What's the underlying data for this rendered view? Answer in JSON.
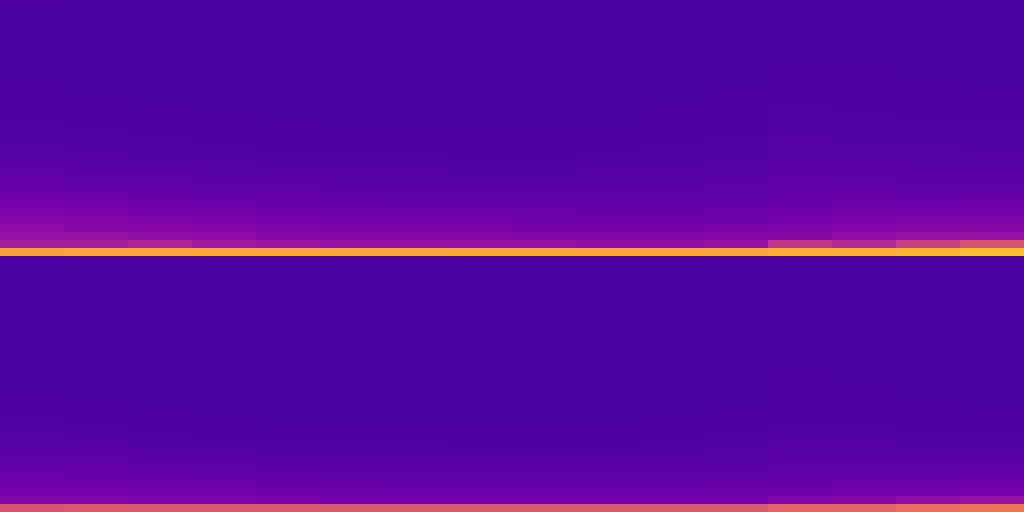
{
  "chart_data": [
    {
      "type": "heatmap",
      "zlim": [
        0,
        100
      ],
      "values": [
        [
          13,
          12,
          12,
          12,
          12,
          12,
          12,
          12,
          12,
          12,
          12,
          12,
          12,
          12,
          12,
          12
        ],
        [
          12,
          12,
          12,
          12,
          12,
          12,
          12,
          12,
          12,
          12,
          12,
          12,
          12,
          12,
          12,
          12
        ],
        [
          12,
          12,
          12,
          12,
          12,
          12,
          12,
          12,
          12,
          12,
          12,
          12,
          12,
          12,
          12,
          12
        ],
        [
          12,
          12,
          12,
          12,
          12,
          12,
          12,
          12,
          12,
          12,
          12,
          12,
          12,
          12,
          12,
          12
        ],
        [
          12,
          12,
          12,
          12,
          12,
          12,
          12,
          12,
          12,
          12,
          12,
          12,
          12,
          12,
          12,
          12
        ],
        [
          12,
          12,
          12,
          12,
          12,
          12,
          12,
          12,
          12,
          12,
          12,
          12,
          12,
          12,
          12,
          12
        ],
        [
          12,
          12,
          12,
          12,
          12,
          12,
          12,
          12,
          12,
          12,
          12,
          12,
          12,
          12,
          12,
          12
        ],
        [
          12,
          12,
          12,
          12,
          12,
          12,
          12,
          12,
          12,
          12,
          12,
          12,
          12,
          12,
          12,
          12
        ],
        [
          12,
          12,
          12,
          12,
          12,
          12,
          12,
          12,
          12,
          12,
          12,
          12,
          13,
          13,
          12,
          12
        ],
        [
          12,
          12,
          12,
          12,
          12,
          12,
          12,
          12,
          12,
          12,
          12,
          12,
          13,
          13,
          12,
          12
        ],
        [
          13,
          12,
          12,
          12,
          12,
          12,
          12,
          12,
          12,
          12,
          12,
          12,
          13,
          13,
          13,
          12
        ],
        [
          13,
          12,
          12,
          12,
          12,
          12,
          12,
          12,
          12,
          12,
          12,
          13,
          13,
          13,
          13,
          13
        ],
        [
          13,
          13,
          12,
          12,
          12,
          12,
          12,
          12,
          12,
          12,
          12,
          13,
          13,
          13,
          13,
          13
        ],
        [
          13,
          13,
          13,
          12,
          12,
          12,
          12,
          12,
          12,
          12,
          13,
          13,
          14,
          13,
          13,
          13
        ],
        [
          13,
          13,
          13,
          13,
          12,
          12,
          12,
          12,
          12,
          12,
          13,
          13,
          14,
          14,
          13,
          13
        ],
        [
          14,
          13,
          13,
          13,
          13,
          12,
          12,
          12,
          12,
          12,
          13,
          13,
          14,
          14,
          14,
          14
        ],
        [
          14,
          14,
          13,
          13,
          13,
          13,
          13,
          13,
          13,
          13,
          13,
          13,
          14,
          14,
          14,
          14
        ],
        [
          14,
          14,
          14,
          13,
          13,
          13,
          13,
          13,
          13,
          13,
          13,
          14,
          15,
          14,
          14,
          14
        ],
        [
          15,
          14,
          14,
          14,
          13,
          13,
          13,
          13,
          13,
          13,
          14,
          14,
          15,
          15,
          15,
          14
        ],
        [
          15,
          15,
          14,
          14,
          14,
          14,
          14,
          13,
          13,
          14,
          14,
          14,
          15,
          15,
          15,
          15
        ],
        [
          16,
          15,
          15,
          15,
          14,
          14,
          14,
          14,
          14,
          14,
          14,
          15,
          16,
          16,
          15,
          15
        ],
        [
          17,
          16,
          16,
          15,
          15,
          15,
          15,
          14,
          14,
          15,
          15,
          15,
          16,
          16,
          16,
          16
        ],
        [
          18,
          17,
          17,
          16,
          16,
          15,
          15,
          15,
          15,
          15,
          15,
          16,
          17,
          17,
          16,
          16
        ],
        [
          19,
          18,
          18,
          17,
          17,
          16,
          16,
          16,
          16,
          16,
          16,
          17,
          17,
          18,
          17,
          17
        ],
        [
          21,
          20,
          19,
          18,
          18,
          17,
          17,
          17,
          17,
          17,
          17,
          17,
          18,
          19,
          18,
          19
        ],
        [
          23,
          22,
          21,
          20,
          19,
          19,
          18,
          18,
          18,
          18,
          18,
          18,
          19,
          20,
          20,
          21
        ],
        [
          25,
          24,
          23,
          22,
          21,
          20,
          20,
          20,
          20,
          19,
          19,
          20,
          21,
          22,
          22,
          23
        ],
        [
          27,
          26,
          25,
          24,
          23,
          22,
          22,
          22,
          21,
          21,
          21,
          21,
          23,
          24,
          25,
          25
        ],
        [
          29,
          28,
          27,
          26,
          25,
          24,
          24,
          24,
          23,
          23,
          23,
          24,
          25,
          26,
          27,
          28
        ],
        [
          32,
          31,
          30,
          29,
          28,
          27,
          27,
          27,
          26,
          26,
          26,
          27,
          28,
          30,
          31,
          32
        ],
        [
          36,
          36,
          38,
          34,
          33,
          32,
          32,
          31,
          31,
          30,
          30,
          32,
          45,
          40,
          48,
          55
        ],
        [
          78,
          80,
          80,
          80,
          80,
          80,
          80,
          80,
          80,
          80,
          80,
          80,
          82,
          82,
          84,
          86
        ]
      ]
    },
    {
      "type": "heatmap",
      "zlim": [
        0,
        100
      ],
      "values": [
        [
          12,
          12,
          12,
          12,
          12,
          12,
          12,
          12,
          12,
          12,
          12,
          12,
          12,
          12,
          12,
          12
        ],
        [
          12,
          12,
          12,
          12,
          12,
          12,
          12,
          12,
          12,
          12,
          12,
          12,
          12,
          12,
          12,
          12
        ],
        [
          12,
          12,
          12,
          12,
          12,
          12,
          12,
          12,
          12,
          12,
          12,
          12,
          12,
          12,
          12,
          12
        ],
        [
          12,
          12,
          12,
          12,
          12,
          12,
          12,
          12,
          12,
          12,
          12,
          12,
          12,
          12,
          12,
          12
        ],
        [
          12,
          12,
          12,
          12,
          12,
          12,
          12,
          12,
          12,
          12,
          12,
          12,
          12,
          12,
          12,
          12
        ],
        [
          12,
          12,
          12,
          12,
          12,
          12,
          12,
          12,
          12,
          12,
          12,
          12,
          12,
          12,
          12,
          12
        ],
        [
          12,
          12,
          12,
          12,
          12,
          12,
          12,
          12,
          12,
          12,
          12,
          12,
          12,
          12,
          12,
          12
        ],
        [
          12,
          12,
          12,
          12,
          12,
          12,
          12,
          12,
          12,
          12,
          12,
          12,
          12,
          12,
          12,
          12
        ],
        [
          12,
          12,
          12,
          12,
          12,
          12,
          12,
          12,
          12,
          12,
          12,
          12,
          12,
          12,
          12,
          12
        ],
        [
          12,
          12,
          12,
          12,
          12,
          12,
          12,
          12,
          12,
          12,
          12,
          12,
          12,
          12,
          12,
          12
        ],
        [
          12,
          12,
          12,
          12,
          12,
          12,
          12,
          12,
          12,
          12,
          12,
          12,
          12,
          12,
          12,
          12
        ],
        [
          12,
          12,
          12,
          12,
          12,
          12,
          12,
          12,
          12,
          12,
          12,
          12,
          12,
          12,
          12,
          12
        ],
        [
          12,
          12,
          12,
          12,
          12,
          12,
          12,
          12,
          12,
          12,
          12,
          12,
          12,
          12,
          12,
          12
        ],
        [
          12,
          12,
          12,
          12,
          12,
          12,
          12,
          12,
          12,
          12,
          12,
          12,
          12,
          12,
          12,
          12
        ],
        [
          12,
          12,
          12,
          12,
          12,
          12,
          12,
          12,
          12,
          12,
          12,
          12,
          13,
          12,
          12,
          12
        ],
        [
          12,
          12,
          12,
          12,
          12,
          12,
          12,
          12,
          12,
          12,
          12,
          12,
          13,
          12,
          12,
          12
        ],
        [
          12,
          12,
          12,
          12,
          12,
          12,
          12,
          12,
          12,
          12,
          12,
          12,
          13,
          13,
          12,
          12
        ],
        [
          13,
          12,
          12,
          12,
          12,
          12,
          12,
          12,
          12,
          12,
          12,
          12,
          13,
          13,
          12,
          12
        ],
        [
          13,
          13,
          12,
          12,
          12,
          12,
          12,
          12,
          12,
          12,
          12,
          12,
          13,
          13,
          13,
          12
        ],
        [
          13,
          13,
          13,
          12,
          12,
          12,
          12,
          12,
          12,
          12,
          12,
          13,
          13,
          13,
          13,
          13
        ],
        [
          14,
          13,
          13,
          13,
          12,
          12,
          12,
          12,
          12,
          12,
          13,
          13,
          13,
          13,
          13,
          13
        ],
        [
          14,
          14,
          13,
          13,
          13,
          13,
          13,
          13,
          13,
          13,
          13,
          13,
          14,
          14,
          13,
          13
        ],
        [
          15,
          14,
          14,
          13,
          13,
          13,
          13,
          13,
          13,
          13,
          13,
          14,
          14,
          14,
          14,
          14
        ],
        [
          15,
          15,
          14,
          14,
          14,
          14,
          14,
          13,
          13,
          13,
          14,
          14,
          15,
          15,
          14,
          14
        ],
        [
          16,
          16,
          15,
          15,
          14,
          14,
          14,
          14,
          14,
          14,
          14,
          15,
          15,
          15,
          15,
          15
        ],
        [
          17,
          17,
          16,
          16,
          15,
          15,
          15,
          15,
          15,
          15,
          15,
          15,
          16,
          16,
          16,
          16
        ],
        [
          18,
          18,
          17,
          17,
          16,
          16,
          16,
          16,
          16,
          16,
          16,
          16,
          17,
          17,
          17,
          17
        ],
        [
          20,
          19,
          19,
          18,
          18,
          17,
          17,
          17,
          17,
          17,
          17,
          17,
          18,
          18,
          18,
          19
        ],
        [
          21,
          21,
          20,
          20,
          19,
          19,
          18,
          18,
          18,
          18,
          18,
          19,
          19,
          20,
          20,
          21
        ],
        [
          23,
          23,
          22,
          22,
          21,
          20,
          20,
          20,
          20,
          20,
          20,
          20,
          21,
          22,
          22,
          23
        ],
        [
          26,
          26,
          25,
          25,
          24,
          23,
          23,
          23,
          23,
          23,
          23,
          23,
          26,
          28,
          30,
          32
        ],
        [
          55,
          56,
          56,
          56,
          56,
          56,
          56,
          56,
          56,
          56,
          56,
          56,
          60,
          60,
          64,
          66
        ]
      ]
    }
  ]
}
